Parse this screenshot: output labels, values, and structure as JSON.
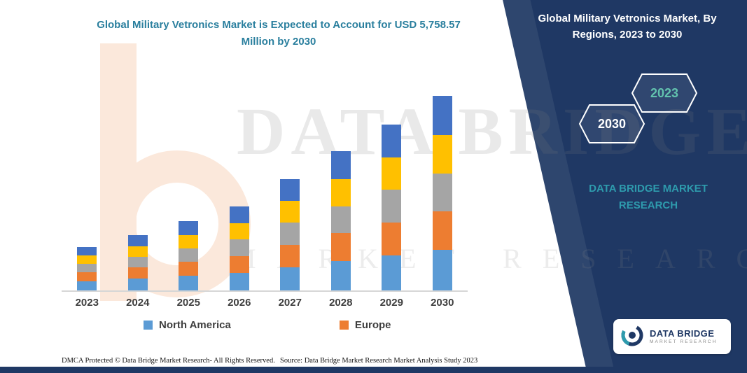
{
  "title": "Global Military Vetronics Market is Expected to Account for USD 5,758.57 Million by 2030",
  "right_panel": {
    "title": "Global Military Vetronics Market, By Regions, 2023 to 2030",
    "hexagon_back_label": "2030",
    "hexagon_front_label": "2023",
    "brand_text": "DATA BRIDGE MARKET RESEARCH"
  },
  "watermark": {
    "line1": "DATA BRIDGE",
    "line2": "MARKET RESEARCH"
  },
  "colors": {
    "navy_panel": "#1F3864",
    "title_teal": "#2A7F9E",
    "brand_teal": "#2E9BAD",
    "hexagon_front_text": "#62C2AE",
    "axis_line": "#D6D6D6"
  },
  "legend": [
    {
      "label": "North America",
      "color": "#5B9BD5"
    },
    {
      "label": "Europe",
      "color": "#ED7D31"
    }
  ],
  "footer": {
    "dmca": "DMCA Protected © Data Bridge Market Research-  All Rights Reserved.",
    "source": "Source: Data Bridge Market Research  Market Analysis Study 2023"
  },
  "logo_card": {
    "name": "DATA BRIDGE",
    "sub": "MARKET RESEARCH"
  },
  "chart_data": {
    "type": "bar",
    "stacked": true,
    "title": "Global Military Vetronics Market is Expected to Account for USD 5,758.57 Million by 2030",
    "unit": "USD Million",
    "categories": [
      "2023",
      "2024",
      "2025",
      "2026",
      "2027",
      "2028",
      "2029",
      "2030"
    ],
    "series": [
      {
        "name": "North America",
        "color": "#5B9BD5",
        "values": [
          270,
          345,
          430,
          520,
          690,
          860,
          1030,
          1200
        ]
      },
      {
        "name": "Europe",
        "color": "#ED7D31",
        "values": [
          260,
          330,
          415,
          500,
          665,
          830,
          990,
          1150
        ]
      },
      {
        "name": "unlabeled-gray",
        "color": "#A5A5A5",
        "values": [
          250,
          320,
          400,
          485,
          645,
          805,
          960,
          1120
        ]
      },
      {
        "name": "unlabeled-yellow",
        "color": "#FFC000",
        "values": [
          250,
          320,
          400,
          485,
          645,
          805,
          960,
          1120
        ]
      },
      {
        "name": "unlabeled-darkblue",
        "color": "#4472C4",
        "values": [
          250,
          325,
          405,
          490,
          650,
          815,
          965,
          1168.57
        ]
      }
    ],
    "totals_by_year": [
      1280,
      1640,
      2050,
      2480,
      3295,
      4115,
      4905,
      5758.57
    ],
    "y_max_total": 5758.57,
    "legend_position": "bottom",
    "grid": false
  }
}
